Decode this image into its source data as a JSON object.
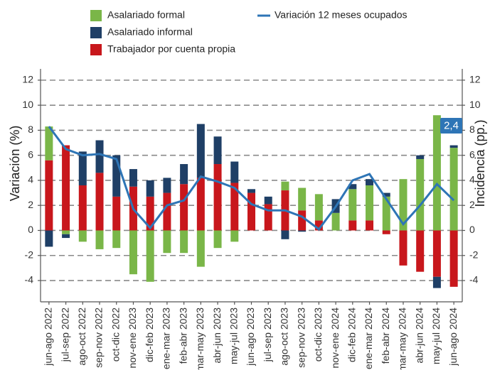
{
  "chart_data": {
    "type": "bar-line",
    "y_label": "Variación (%)",
    "y2_label": "Incidencia (pp.)",
    "categories": [
      "jun-ago 2022",
      "jul-sep 2022",
      "ago-oct 2022",
      "sep-nov 2022",
      "oct-dic 2022",
      "nov-ene 2023",
      "dic-feb 2023",
      "ene-mar 2023",
      "feb-abr 2023",
      "mar-may 2023",
      "abr-jun 2023",
      "may-jul 2023",
      "jun-ago 2023",
      "jul-sep 2023",
      "ago-oct 2023",
      "sep-nov 2023",
      "oct-dic 2023",
      "nov-ene 2024",
      "dic-feb 2024",
      "ene-mar 2024",
      "feb-abr 2024",
      "mar-may 2024",
      "abr-jun 2024",
      "may-jul 2024",
      "jun-ago 2024"
    ],
    "series": [
      {
        "name": "Asalariado formal",
        "type": "bar",
        "color": "#7ab648",
        "values": [
          2.7,
          -0.3,
          -0.9,
          -1.5,
          -1.4,
          -3.5,
          -4.1,
          -1.8,
          -1.8,
          -2.9,
          -1.4,
          -0.9,
          0,
          0,
          0.7,
          1.8,
          2.1,
          1.4,
          2.5,
          2.8,
          2.7,
          4.1,
          5.7,
          9.2,
          6.6
        ]
      },
      {
        "name": "Asalariado informal",
        "type": "bar",
        "color": "#1f3f66",
        "values": [
          -1.3,
          -0.3,
          2.7,
          2.6,
          3.3,
          1.4,
          1.3,
          1.2,
          1.6,
          4.3,
          2.2,
          1.7,
          0.3,
          0.6,
          -0.7,
          -0.1,
          0,
          1.1,
          0.4,
          0.5,
          0.3,
          0,
          0.3,
          -0.9,
          0.2
        ]
      },
      {
        "name": "Trabajador por cuenta propia",
        "type": "bar",
        "color": "#c8171c",
        "values": [
          5.6,
          6.8,
          3.6,
          4.6,
          2.7,
          3.5,
          2.7,
          3.0,
          3.7,
          4.2,
          5.3,
          3.8,
          3.0,
          2.1,
          3.2,
          1.6,
          0.8,
          0,
          0.8,
          0.8,
          -0.3,
          -2.8,
          -3.3,
          -3.7,
          -4.5
        ]
      },
      {
        "name": "Variación 12 meses ocupados",
        "type": "line",
        "axis": "y2",
        "color": "#2e75b6",
        "values": [
          8.3,
          6.5,
          6.0,
          6.1,
          5.7,
          1.7,
          0.2,
          2.0,
          2.4,
          4.3,
          3.9,
          3.4,
          2.1,
          1.6,
          1.6,
          1.1,
          0.1,
          1.9,
          4.0,
          4.5,
          2.5,
          0.5,
          2.0,
          3.7,
          2.4
        ],
        "value_labels": [
          null,
          null,
          null,
          null,
          null,
          null,
          null,
          null,
          null,
          null,
          null,
          null,
          null,
          null,
          null,
          null,
          null,
          null,
          null,
          null,
          null,
          null,
          null,
          null,
          "2,4"
        ]
      }
    ],
    "ylim": [
      -5.7,
      12.9
    ],
    "yticks": [
      -4,
      -2,
      0,
      2,
      4,
      6,
      8,
      10,
      12
    ],
    "y2lim": [
      -5.7,
      12.9
    ],
    "y2ticks": [
      -4,
      -2,
      0,
      2,
      4,
      6,
      8,
      10,
      12
    ],
    "grid": true
  }
}
